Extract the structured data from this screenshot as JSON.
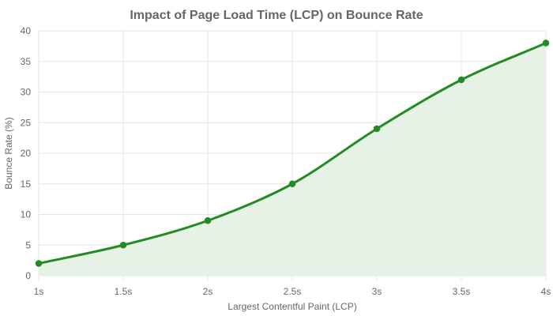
{
  "chart_data": {
    "type": "area",
    "title": "Impact of Page Load Time (LCP) on Bounce Rate",
    "xlabel": "Largest Contentful Paint (LCP)",
    "ylabel": "Bounce Rate (%)",
    "categories": [
      "1s",
      "1.5s",
      "2s",
      "2.5s",
      "3s",
      "3.5s",
      "4s"
    ],
    "series": [
      {
        "values": [
          2,
          5,
          9,
          15,
          24,
          32,
          38
        ]
      }
    ],
    "ylim": [
      0,
      40
    ],
    "yticks": [
      0,
      5,
      10,
      15,
      20,
      25,
      30,
      35,
      40
    ],
    "grid": true,
    "legend": "none",
    "colors": {
      "line": "#228b22",
      "fill": "#e5f2e5",
      "grid": "#e5e5e5",
      "text": "#666666"
    }
  }
}
